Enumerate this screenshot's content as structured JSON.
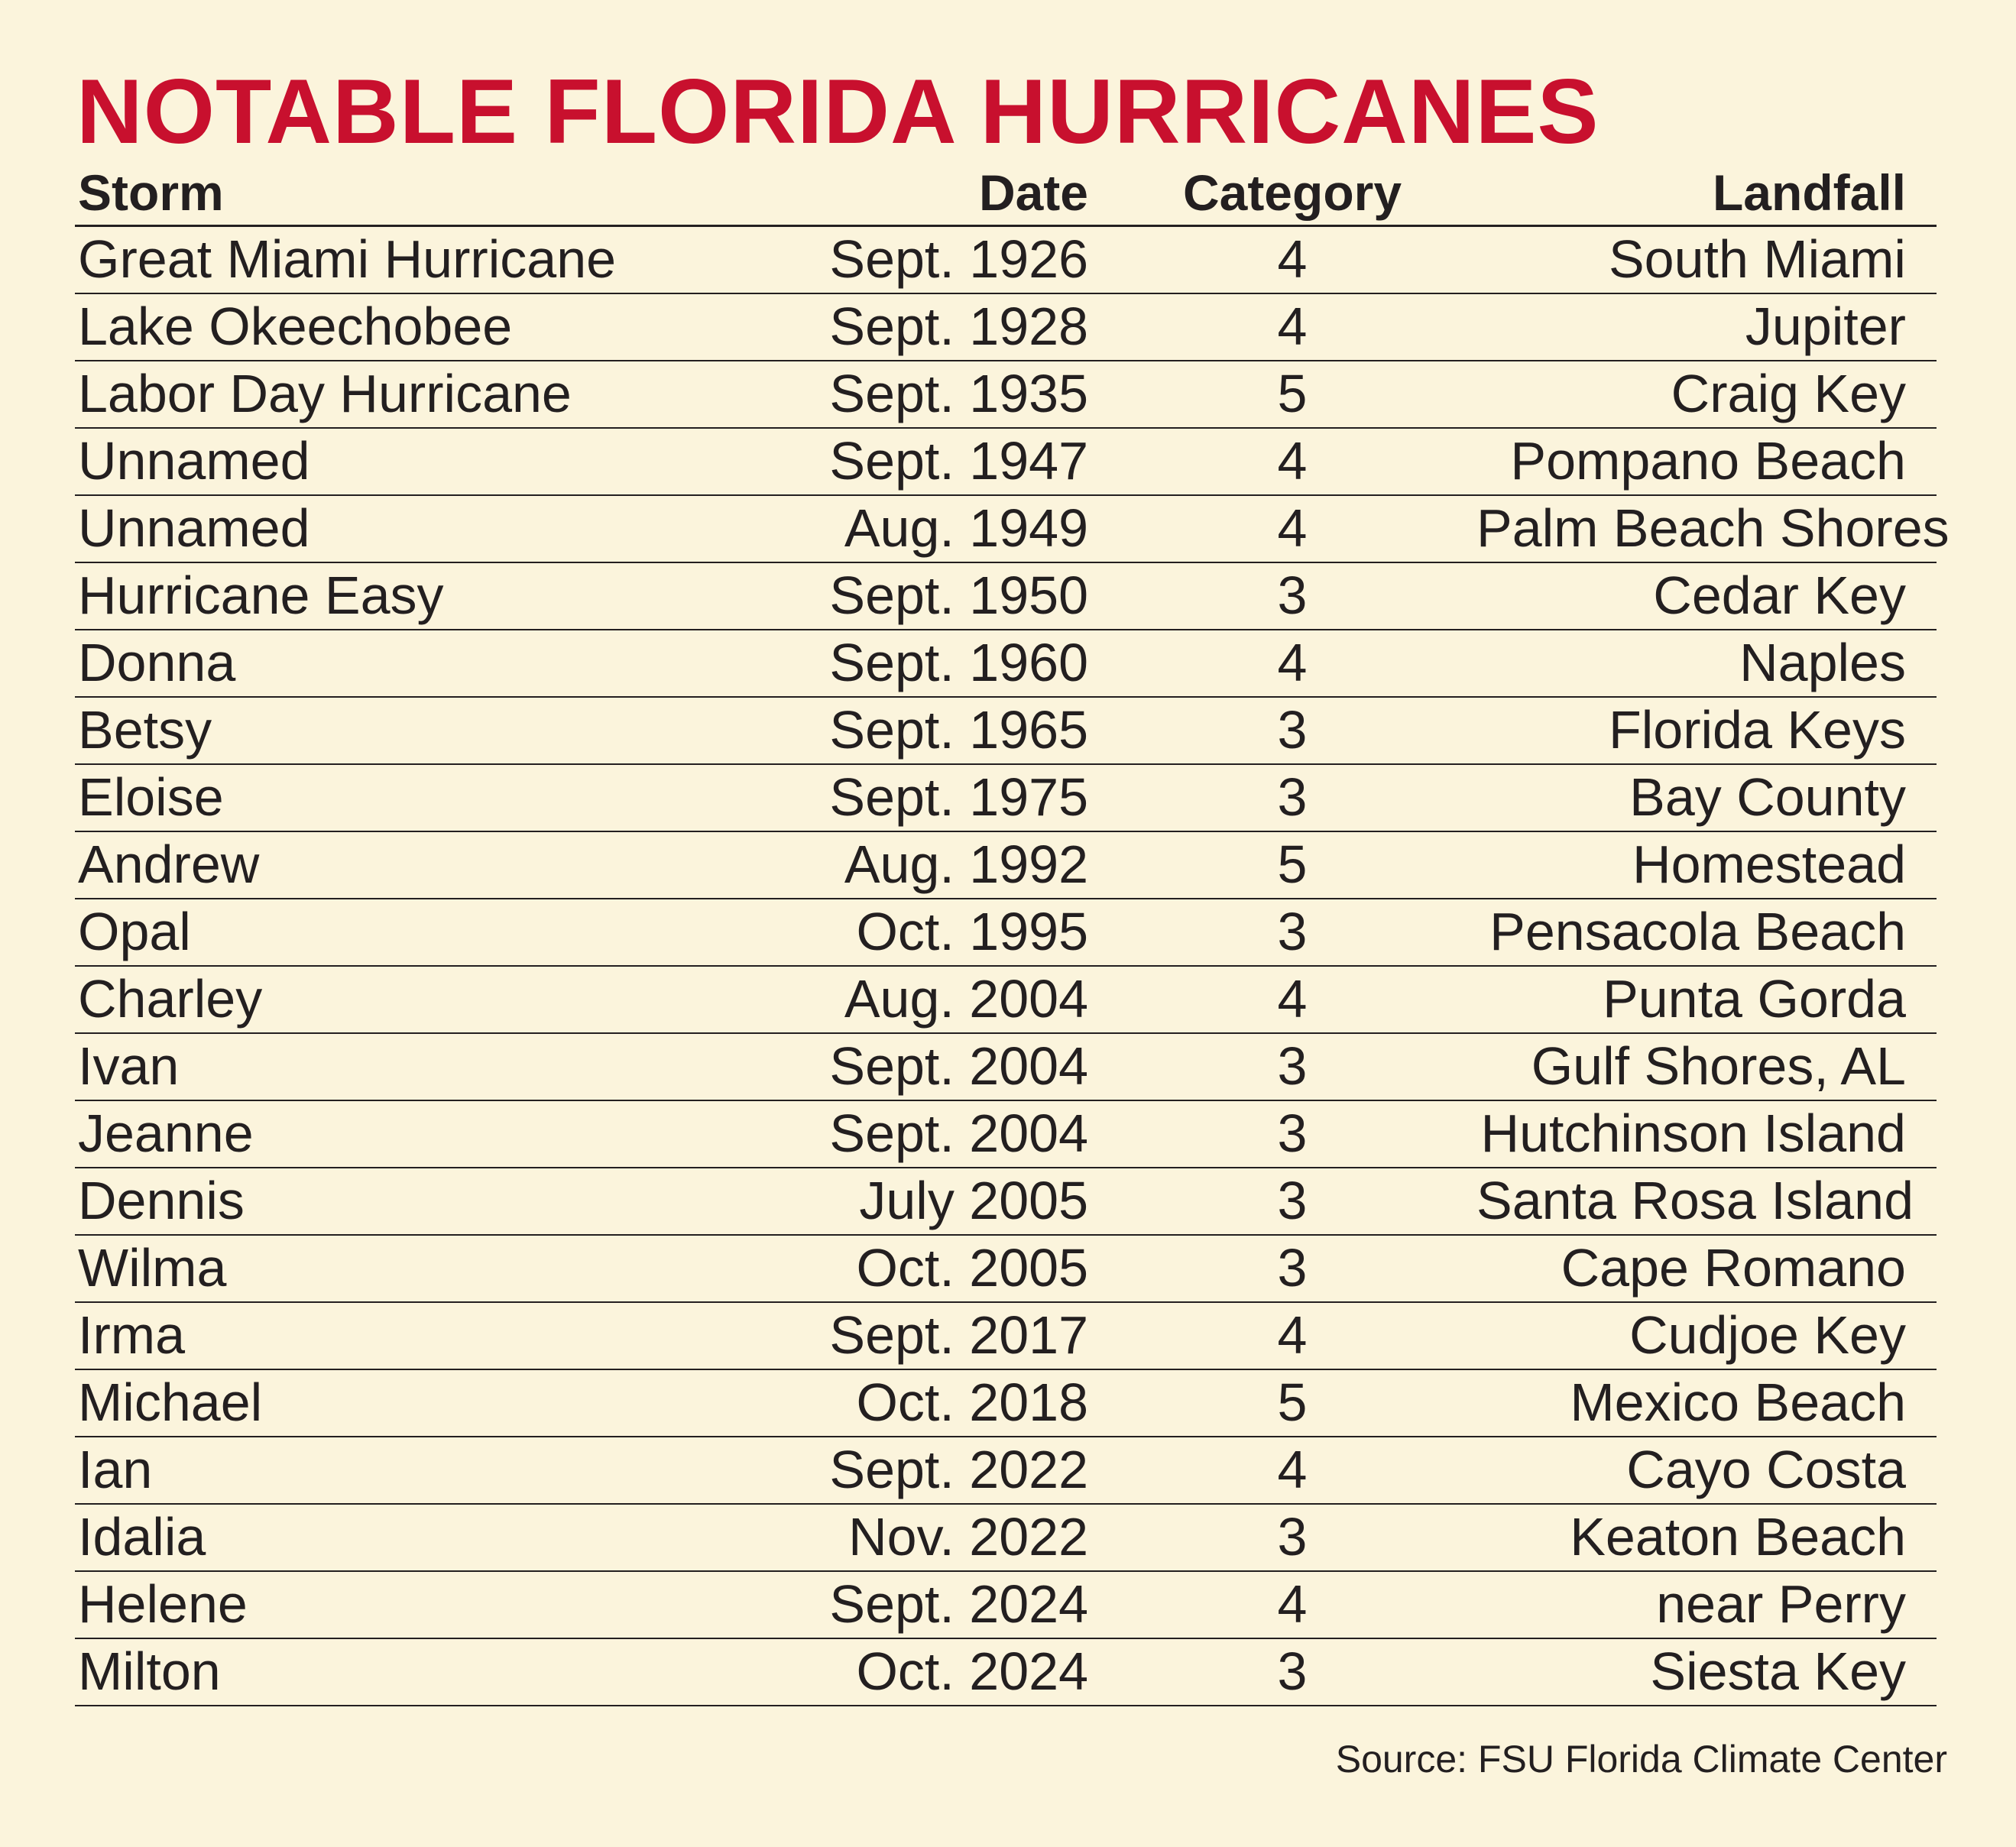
{
  "title": "NOTABLE FLORIDA HURRICANES",
  "headers": {
    "storm": "Storm",
    "date": "Date",
    "category": "Category",
    "landfall": "Landfall"
  },
  "rows": [
    {
      "storm": "Great Miami Hurricane",
      "date": "Sept. 1926",
      "category": "4",
      "landfall": "South Miami"
    },
    {
      "storm": "Lake Okeechobee",
      "date": "Sept. 1928",
      "category": "4",
      "landfall": "Jupiter"
    },
    {
      "storm": "Labor Day Hurricane",
      "date": "Sept. 1935",
      "category": "5",
      "landfall": "Craig Key"
    },
    {
      "storm": "Unnamed",
      "date": "Sept. 1947",
      "category": "4",
      "landfall": "Pompano Beach"
    },
    {
      "storm": "Unnamed",
      "date": "Aug. 1949",
      "category": "4",
      "landfall": "Palm Beach Shores"
    },
    {
      "storm": "Hurricane Easy",
      "date": "Sept. 1950",
      "category": "3",
      "landfall": "Cedar Key"
    },
    {
      "storm": "Donna",
      "date": "Sept. 1960",
      "category": "4",
      "landfall": "Naples"
    },
    {
      "storm": "Betsy",
      "date": "Sept. 1965",
      "category": "3",
      "landfall": "Florida Keys"
    },
    {
      "storm": "Eloise",
      "date": "Sept. 1975",
      "category": "3",
      "landfall": "Bay County"
    },
    {
      "storm": "Andrew",
      "date": "Aug. 1992",
      "category": "5",
      "landfall": "Homestead"
    },
    {
      "storm": "Opal",
      "date": "Oct. 1995",
      "category": "3",
      "landfall": "Pensacola Beach"
    },
    {
      "storm": "Charley",
      "date": "Aug. 2004",
      "category": "4",
      "landfall": "Punta Gorda"
    },
    {
      "storm": "Ivan",
      "date": "Sept. 2004",
      "category": "3",
      "landfall": "Gulf Shores, AL"
    },
    {
      "storm": "Jeanne",
      "date": "Sept. 2004",
      "category": "3",
      "landfall": "Hutchinson Island"
    },
    {
      "storm": "Dennis",
      "date": "July 2005",
      "category": "3",
      "landfall": "Santa Rosa Island"
    },
    {
      "storm": "Wilma",
      "date": "Oct. 2005",
      "category": "3",
      "landfall": "Cape Romano"
    },
    {
      "storm": "Irma",
      "date": "Sept. 2017",
      "category": "4",
      "landfall": "Cudjoe Key"
    },
    {
      "storm": "Michael",
      "date": "Oct. 2018",
      "category": "5",
      "landfall": "Mexico Beach"
    },
    {
      "storm": "Ian",
      "date": "Sept. 2022",
      "category": "4",
      "landfall": "Cayo Costa"
    },
    {
      "storm": "Idalia",
      "date": "Nov. 2022",
      "category": "3",
      "landfall": "Keaton Beach"
    },
    {
      "storm": "Helene",
      "date": "Sept. 2024",
      "category": "4",
      "landfall": "near Perry"
    },
    {
      "storm": "Milton",
      "date": "Oct. 2024",
      "category": "3",
      "landfall": "Siesta Key"
    }
  ],
  "source": "Source: FSU Florida Climate Center",
  "colors": {
    "background": "#fbf4dc",
    "title": "#c8102e",
    "text": "#231f20"
  }
}
